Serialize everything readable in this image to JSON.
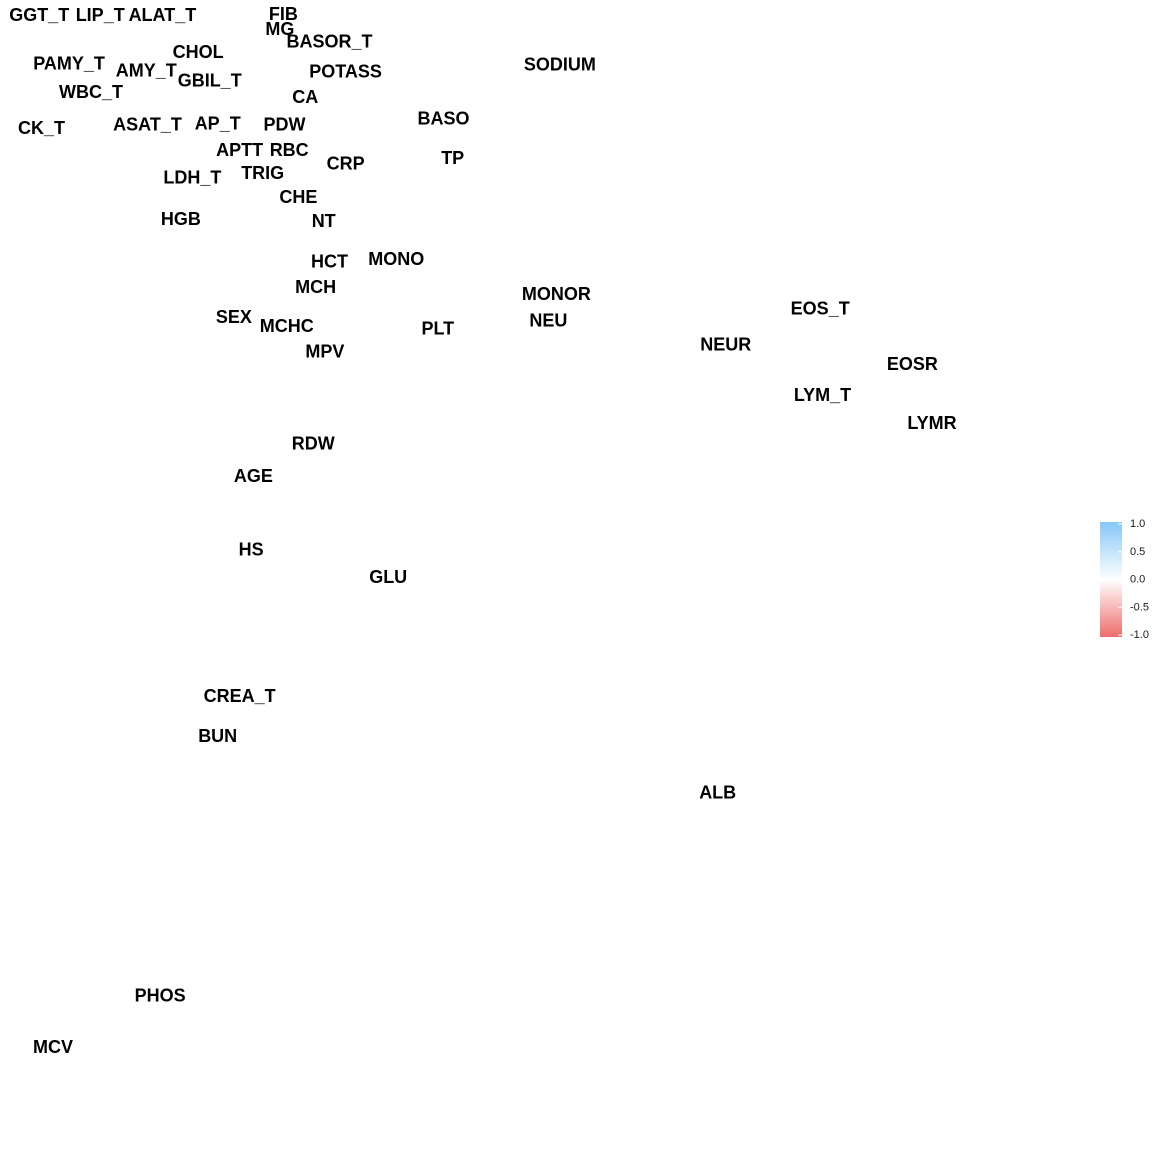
{
  "chart_data": {
    "type": "scatter",
    "description_words": "network plot of variable correlations, labels only",
    "x_range": [
      0,
      1
    ],
    "y_range": [
      0,
      1
    ],
    "grid": false,
    "legend": {
      "placement": "right",
      "colors": {
        "positive": "#86c7f7",
        "zero": "#ffffff",
        "negative": "#ef6c6c"
      },
      "range": [
        -1,
        1
      ],
      "ticks": [
        "1.0",
        "0.5",
        "0.0",
        "-0.5",
        "-1.0"
      ]
    },
    "points": [
      {
        "label": "GGT_T",
        "x": 0.034,
        "y": 0.987
      },
      {
        "label": "LIP_T",
        "x": 0.087,
        "y": 0.987
      },
      {
        "label": "ALAT_T",
        "x": 0.141,
        "y": 0.987
      },
      {
        "label": "FIB",
        "x": 0.246,
        "y": 0.988
      },
      {
        "label": "MG",
        "x": 0.243,
        "y": 0.975
      },
      {
        "label": "BASOR_T",
        "x": 0.286,
        "y": 0.964
      },
      {
        "label": "CHOL",
        "x": 0.172,
        "y": 0.955
      },
      {
        "label": "PAMY_T",
        "x": 0.06,
        "y": 0.945
      },
      {
        "label": "AMY_T",
        "x": 0.127,
        "y": 0.939
      },
      {
        "label": "POTASS",
        "x": 0.3,
        "y": 0.938
      },
      {
        "label": "SODIUM",
        "x": 0.486,
        "y": 0.944
      },
      {
        "label": "GBIL_T",
        "x": 0.182,
        "y": 0.93
      },
      {
        "label": "WBC_T",
        "x": 0.079,
        "y": 0.92
      },
      {
        "label": "CA",
        "x": 0.265,
        "y": 0.916
      },
      {
        "label": "CK_T",
        "x": 0.036,
        "y": 0.889
      },
      {
        "label": "ASAT_T",
        "x": 0.128,
        "y": 0.892
      },
      {
        "label": "AP_T",
        "x": 0.189,
        "y": 0.893
      },
      {
        "label": "PDW",
        "x": 0.247,
        "y": 0.892
      },
      {
        "label": "BASO",
        "x": 0.385,
        "y": 0.897
      },
      {
        "label": "APTT",
        "x": 0.208,
        "y": 0.87
      },
      {
        "label": "RBC",
        "x": 0.251,
        "y": 0.87
      },
      {
        "label": "TP",
        "x": 0.393,
        "y": 0.863
      },
      {
        "label": "CRP",
        "x": 0.3,
        "y": 0.858
      },
      {
        "label": "LDH_T",
        "x": 0.167,
        "y": 0.846
      },
      {
        "label": "TRIG",
        "x": 0.228,
        "y": 0.85
      },
      {
        "label": "CHE",
        "x": 0.259,
        "y": 0.829
      },
      {
        "label": "NT",
        "x": 0.281,
        "y": 0.808
      },
      {
        "label": "HGB",
        "x": 0.157,
        "y": 0.81
      },
      {
        "label": "HCT",
        "x": 0.286,
        "y": 0.773
      },
      {
        "label": "MONO",
        "x": 0.344,
        "y": 0.775
      },
      {
        "label": "MCH",
        "x": 0.274,
        "y": 0.751
      },
      {
        "label": "MONOR",
        "x": 0.483,
        "y": 0.745
      },
      {
        "label": "NEU",
        "x": 0.476,
        "y": 0.722
      },
      {
        "label": "EOS_T",
        "x": 0.712,
        "y": 0.732
      },
      {
        "label": "SEX",
        "x": 0.203,
        "y": 0.725
      },
      {
        "label": "MCHC",
        "x": 0.249,
        "y": 0.717
      },
      {
        "label": "PLT",
        "x": 0.38,
        "y": 0.715
      },
      {
        "label": "NEUR",
        "x": 0.63,
        "y": 0.701
      },
      {
        "label": "MPV",
        "x": 0.282,
        "y": 0.695
      },
      {
        "label": "EOSR",
        "x": 0.792,
        "y": 0.684
      },
      {
        "label": "LYM_T",
        "x": 0.714,
        "y": 0.657
      },
      {
        "label": "LYMR",
        "x": 0.809,
        "y": 0.633
      },
      {
        "label": "RDW",
        "x": 0.272,
        "y": 0.615
      },
      {
        "label": "AGE",
        "x": 0.22,
        "y": 0.587
      },
      {
        "label": "HS",
        "x": 0.218,
        "y": 0.523
      },
      {
        "label": "GLU",
        "x": 0.337,
        "y": 0.499
      },
      {
        "label": "CREA_T",
        "x": 0.208,
        "y": 0.396
      },
      {
        "label": "BUN",
        "x": 0.189,
        "y": 0.361
      },
      {
        "label": "ALB",
        "x": 0.623,
        "y": 0.312
      },
      {
        "label": "PHOS",
        "x": 0.139,
        "y": 0.136
      },
      {
        "label": "MCV",
        "x": 0.046,
        "y": 0.091
      }
    ]
  }
}
